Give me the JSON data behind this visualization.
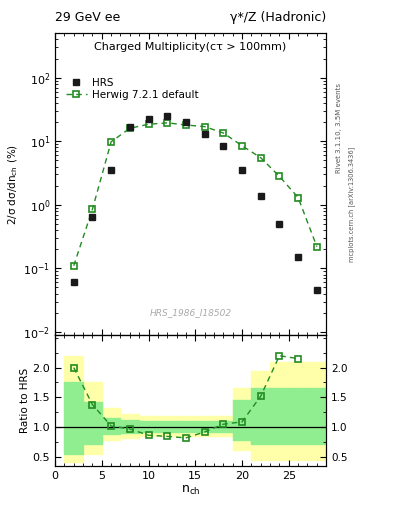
{
  "title_left": "29 GeV ee",
  "title_right": "γ*/Z (Hadronic)",
  "plot_title": "Charged Multiplicity",
  "plot_subtitle": "(cτ > 100mm)",
  "ylabel_main": "2/σ dσ/dn$_{ch}$ (%)",
  "ylabel_ratio": "Ratio to HRS",
  "xlabel": "n$_{ch}$",
  "watermark": "HRS_1986_I18502",
  "right_label1": "Rivet 3.1.10, 3.5M events",
  "right_label2": "mcplots.cern.ch [arXiv:1306.3436]",
  "ylim_main": [
    0.009,
    500
  ],
  "ylim_ratio": [
    0.35,
    2.55
  ],
  "xlim": [
    0,
    29
  ],
  "hrs_x": [
    2,
    4,
    6,
    8,
    10,
    12,
    14,
    16,
    18,
    20,
    22,
    24,
    26,
    28
  ],
  "hrs_y": [
    0.06,
    0.65,
    3.5,
    17.0,
    22.0,
    25.0,
    20.0,
    13.0,
    8.5,
    3.5,
    1.4,
    0.5,
    0.15,
    0.045
  ],
  "mc_x": [
    2,
    4,
    6,
    8,
    10,
    12,
    14,
    16,
    18,
    20,
    22,
    24,
    26,
    28
  ],
  "mc_y": [
    0.11,
    0.85,
    9.8,
    16.0,
    18.5,
    19.5,
    18.0,
    17.0,
    13.5,
    8.5,
    5.5,
    2.8,
    1.3,
    0.22
  ],
  "ratio_x": [
    2,
    4,
    6,
    8,
    10,
    12,
    14,
    16,
    18,
    20,
    22,
    24,
    26
  ],
  "ratio_y": [
    2.0,
    1.38,
    1.02,
    0.97,
    0.865,
    0.845,
    0.82,
    0.92,
    1.05,
    1.09,
    1.52,
    2.2,
    2.15
  ],
  "gb_edges": [
    1,
    3,
    5,
    7,
    9,
    11,
    13,
    15,
    17,
    19,
    21,
    23,
    25,
    27,
    29
  ],
  "gb_lo": [
    0.55,
    0.72,
    0.88,
    0.9,
    0.92,
    0.92,
    0.92,
    0.92,
    0.92,
    0.78,
    0.72,
    0.72,
    0.72,
    0.72
  ],
  "gb_hi": [
    1.75,
    1.42,
    1.15,
    1.12,
    1.1,
    1.1,
    1.1,
    1.1,
    1.1,
    1.45,
    1.65,
    1.65,
    1.65,
    1.65
  ],
  "yb_edges": [
    1,
    3,
    5,
    7,
    9,
    11,
    13,
    15,
    17,
    19,
    21,
    23,
    25,
    27,
    29
  ],
  "yb_lo": [
    0.42,
    0.55,
    0.78,
    0.82,
    0.85,
    0.85,
    0.85,
    0.85,
    0.85,
    0.62,
    0.45,
    0.45,
    0.45,
    0.45
  ],
  "yb_hi": [
    2.2,
    1.75,
    1.32,
    1.22,
    1.18,
    1.18,
    1.18,
    1.18,
    1.18,
    1.65,
    1.95,
    2.1,
    2.1,
    2.1
  ],
  "hrs_color": "#1a1a1a",
  "mc_color": "#228B22",
  "green_band_color": "#90EE90",
  "yellow_band_color": "#FFFFAA",
  "bg_color": "#ffffff"
}
